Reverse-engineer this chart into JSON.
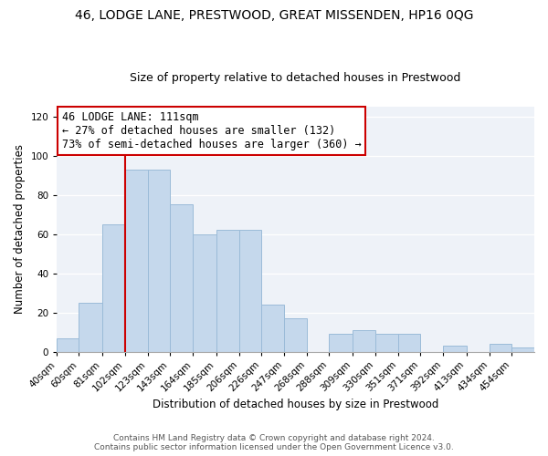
{
  "title": "46, LODGE LANE, PRESTWOOD, GREAT MISSENDEN, HP16 0QG",
  "subtitle": "Size of property relative to detached houses in Prestwood",
  "xlabel": "Distribution of detached houses by size in Prestwood",
  "ylabel": "Number of detached properties",
  "bin_labels": [
    "40sqm",
    "60sqm",
    "81sqm",
    "102sqm",
    "123sqm",
    "143sqm",
    "164sqm",
    "185sqm",
    "206sqm",
    "226sqm",
    "247sqm",
    "268sqm",
    "288sqm",
    "309sqm",
    "330sqm",
    "351sqm",
    "371sqm",
    "392sqm",
    "413sqm",
    "434sqm",
    "454sqm"
  ],
  "bar_values": [
    7,
    25,
    65,
    93,
    93,
    75,
    60,
    62,
    62,
    24,
    17,
    0,
    9,
    11,
    9,
    9,
    0,
    3,
    0,
    4,
    2
  ],
  "bar_edges": [
    40,
    60,
    81,
    102,
    123,
    143,
    164,
    185,
    206,
    226,
    247,
    268,
    288,
    309,
    330,
    351,
    371,
    392,
    413,
    434,
    454,
    475
  ],
  "bar_color": "#c5d8ec",
  "bar_edgecolor": "#9bbbd8",
  "vline_x": 102,
  "vline_color": "#cc0000",
  "ylim": [
    0,
    125
  ],
  "yticks": [
    0,
    20,
    40,
    60,
    80,
    100,
    120
  ],
  "annotation_title": "46 LODGE LANE: 111sqm",
  "annotation_line1": "← 27% of detached houses are smaller (132)",
  "annotation_line2": "73% of semi-detached houses are larger (360) →",
  "annotation_box_color": "#ffffff",
  "annotation_box_edgecolor": "#cc0000",
  "footer_line1": "Contains HM Land Registry data © Crown copyright and database right 2024.",
  "footer_line2": "Contains public sector information licensed under the Open Government Licence v3.0.",
  "title_fontsize": 10,
  "subtitle_fontsize": 9,
  "axis_label_fontsize": 8.5,
  "tick_fontsize": 7.5,
  "annotation_fontsize": 8.5,
  "footer_fontsize": 6.5,
  "bg_color": "#eef2f8"
}
